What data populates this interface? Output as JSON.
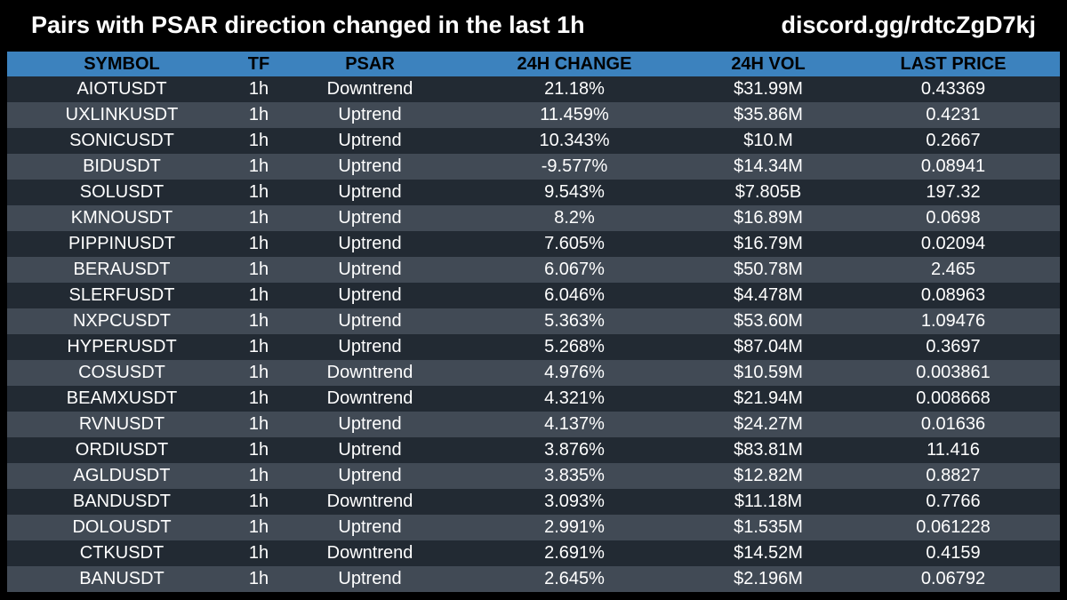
{
  "header": {
    "title": "Pairs with PSAR direction changed in the last 1h",
    "link": "discord.gg/rdtcZgD7kj"
  },
  "colors": {
    "background": "#000000",
    "header_row": "#3c82be",
    "row_dark": "#222a33",
    "row_light": "#414a55"
  },
  "table": {
    "columns": [
      "SYMBOL",
      "TF",
      "PSAR",
      "24H CHANGE",
      "24H VOL",
      "LAST PRICE"
    ],
    "rows": [
      [
        "AIOTUSDT",
        "1h",
        "Downtrend",
        "21.18%",
        "$31.99M",
        "0.43369"
      ],
      [
        "UXLINKUSDT",
        "1h",
        "Uptrend",
        "11.459%",
        "$35.86M",
        "0.4231"
      ],
      [
        "SONICUSDT",
        "1h",
        "Uptrend",
        "10.343%",
        "$10.M",
        "0.2667"
      ],
      [
        "BIDUSDT",
        "1h",
        "Uptrend",
        "-9.577%",
        "$14.34M",
        "0.08941"
      ],
      [
        "SOLUSDT",
        "1h",
        "Uptrend",
        "9.543%",
        "$7.805B",
        "197.32"
      ],
      [
        "KMNOUSDT",
        "1h",
        "Uptrend",
        "8.2%",
        "$16.89M",
        "0.0698"
      ],
      [
        "PIPPINUSDT",
        "1h",
        "Uptrend",
        "7.605%",
        "$16.79M",
        "0.02094"
      ],
      [
        "BERAUSDT",
        "1h",
        "Uptrend",
        "6.067%",
        "$50.78M",
        "2.465"
      ],
      [
        "SLERFUSDT",
        "1h",
        "Uptrend",
        "6.046%",
        "$4.478M",
        "0.08963"
      ],
      [
        "NXPCUSDT",
        "1h",
        "Uptrend",
        "5.363%",
        "$53.60M",
        "1.09476"
      ],
      [
        "HYPERUSDT",
        "1h",
        "Uptrend",
        "5.268%",
        "$87.04M",
        "0.3697"
      ],
      [
        "COSUSDT",
        "1h",
        "Downtrend",
        "4.976%",
        "$10.59M",
        "0.003861"
      ],
      [
        "BEAMXUSDT",
        "1h",
        "Downtrend",
        "4.321%",
        "$21.94M",
        "0.008668"
      ],
      [
        "RVNUSDT",
        "1h",
        "Uptrend",
        "4.137%",
        "$24.27M",
        "0.01636"
      ],
      [
        "ORDIUSDT",
        "1h",
        "Uptrend",
        "3.876%",
        "$83.81M",
        "11.416"
      ],
      [
        "AGLDUSDT",
        "1h",
        "Uptrend",
        "3.835%",
        "$12.82M",
        "0.8827"
      ],
      [
        "BANDUSDT",
        "1h",
        "Downtrend",
        "3.093%",
        "$11.18M",
        "0.7766"
      ],
      [
        "DOLOUSDT",
        "1h",
        "Uptrend",
        "2.991%",
        "$1.535M",
        "0.061228"
      ],
      [
        "CTKUSDT",
        "1h",
        "Downtrend",
        "2.691%",
        "$14.52M",
        "0.4159"
      ],
      [
        "BANUSDT",
        "1h",
        "Uptrend",
        "2.645%",
        "$2.196M",
        "0.06792"
      ]
    ]
  }
}
